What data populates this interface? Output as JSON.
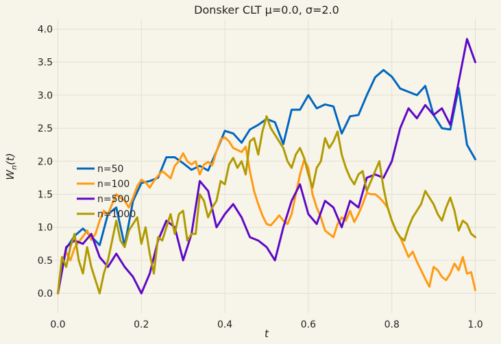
{
  "chart_data": {
    "type": "line",
    "title": "Donsker CLT μ=0.0, σ=2.0",
    "xlabel": "t",
    "ylabel": "W_n(t)",
    "xlim": [
      -0.05,
      1.05
    ],
    "ylim": [
      -0.3,
      4.15
    ],
    "xticks": [
      0.0,
      0.2,
      0.4,
      0.6,
      0.8,
      1.0
    ],
    "xtick_labels": [
      "0.0",
      "0.2",
      "0.4",
      "0.6",
      "0.8",
      "1.0"
    ],
    "yticks": [
      0.0,
      0.5,
      1.0,
      1.5,
      2.0,
      2.5,
      3.0,
      3.5,
      4.0
    ],
    "ytick_labels": [
      "0.0",
      "0.5",
      "1.0",
      "1.5",
      "2.0",
      "2.5",
      "3.0",
      "3.5",
      "4.0"
    ],
    "grid": true,
    "legend_position": "center-left",
    "series": [
      {
        "name": "n=50",
        "color": "#0066c0",
        "x": [
          0,
          0.02,
          0.04,
          0.06,
          0.08,
          0.1,
          0.12,
          0.14,
          0.16,
          0.18,
          0.2,
          0.22,
          0.24,
          0.26,
          0.28,
          0.3,
          0.32,
          0.34,
          0.36,
          0.38,
          0.4,
          0.42,
          0.44,
          0.46,
          0.48,
          0.5,
          0.52,
          0.54,
          0.56,
          0.58,
          0.6,
          0.62,
          0.64,
          0.66,
          0.68,
          0.7,
          0.72,
          0.74,
          0.76,
          0.78,
          0.8,
          0.82,
          0.84,
          0.86,
          0.88,
          0.9,
          0.92,
          0.94,
          0.96,
          0.98,
          1.0
        ],
        "y": [
          0.0,
          0.68,
          0.87,
          0.98,
          0.86,
          0.73,
          1.2,
          1.3,
          0.72,
          1.4,
          1.67,
          1.7,
          1.75,
          2.06,
          2.06,
          1.97,
          1.87,
          1.93,
          1.86,
          2.15,
          2.46,
          2.42,
          2.28,
          2.48,
          2.55,
          2.64,
          2.59,
          2.26,
          2.78,
          2.78,
          3.0,
          2.8,
          2.86,
          2.83,
          2.42,
          2.68,
          2.7,
          3.0,
          3.27,
          3.38,
          3.28,
          3.1,
          3.05,
          3.0,
          3.14,
          2.7,
          2.5,
          2.48,
          3.11,
          2.25,
          2.03
        ]
      },
      {
        "name": "n=100",
        "color": "#ff9a12",
        "x": [
          0,
          0.01,
          0.02,
          0.03,
          0.04,
          0.05,
          0.06,
          0.07,
          0.08,
          0.09,
          0.1,
          0.11,
          0.12,
          0.13,
          0.14,
          0.15,
          0.16,
          0.17,
          0.18,
          0.19,
          0.2,
          0.21,
          0.22,
          0.23,
          0.24,
          0.25,
          0.26,
          0.27,
          0.28,
          0.29,
          0.3,
          0.31,
          0.32,
          0.33,
          0.34,
          0.35,
          0.36,
          0.37,
          0.38,
          0.39,
          0.4,
          0.41,
          0.42,
          0.43,
          0.44,
          0.45,
          0.46,
          0.47,
          0.48,
          0.49,
          0.5,
          0.51,
          0.52,
          0.53,
          0.54,
          0.55,
          0.56,
          0.57,
          0.58,
          0.59,
          0.6,
          0.61,
          0.62,
          0.63,
          0.64,
          0.65,
          0.66,
          0.67,
          0.68,
          0.69,
          0.7,
          0.71,
          0.72,
          0.73,
          0.74,
          0.75,
          0.76,
          0.77,
          0.78,
          0.79,
          0.8,
          0.81,
          0.82,
          0.83,
          0.84,
          0.85,
          0.86,
          0.87,
          0.88,
          0.89,
          0.9,
          0.91,
          0.92,
          0.93,
          0.94,
          0.95,
          0.96,
          0.97,
          0.98,
          0.99,
          1.0
        ],
        "y": [
          0.0,
          0.47,
          0.62,
          0.5,
          0.69,
          0.78,
          0.86,
          0.95,
          0.81,
          0.9,
          1.1,
          1.25,
          1.2,
          1.35,
          1.5,
          1.45,
          1.4,
          1.3,
          1.45,
          1.62,
          1.72,
          1.68,
          1.6,
          1.7,
          1.78,
          1.85,
          1.8,
          1.74,
          1.93,
          2.0,
          2.12,
          2.0,
          1.95,
          2.0,
          1.8,
          1.95,
          1.99,
          1.94,
          2.15,
          2.33,
          2.36,
          2.3,
          2.2,
          2.17,
          2.14,
          2.22,
          1.85,
          1.55,
          1.35,
          1.18,
          1.05,
          1.03,
          1.1,
          1.18,
          1.1,
          1.05,
          1.2,
          1.5,
          1.8,
          2.02,
          1.9,
          1.5,
          1.3,
          1.15,
          0.95,
          0.9,
          0.85,
          1.05,
          1.15,
          1.1,
          1.25,
          1.08,
          1.2,
          1.35,
          1.52,
          1.5,
          1.5,
          1.45,
          1.38,
          1.3,
          1.1,
          0.95,
          0.85,
          0.7,
          0.55,
          0.63,
          0.48,
          0.35,
          0.22,
          0.1,
          0.4,
          0.35,
          0.25,
          0.2,
          0.3,
          0.45,
          0.35,
          0.55,
          0.3,
          0.32,
          0.05
        ]
      },
      {
        "name": "n=500",
        "color": "#5e08c6",
        "x": [
          0,
          0.02,
          0.04,
          0.06,
          0.08,
          0.1,
          0.12,
          0.14,
          0.16,
          0.18,
          0.2,
          0.22,
          0.24,
          0.26,
          0.28,
          0.3,
          0.32,
          0.34,
          0.36,
          0.38,
          0.4,
          0.42,
          0.44,
          0.46,
          0.48,
          0.5,
          0.52,
          0.54,
          0.56,
          0.58,
          0.6,
          0.62,
          0.64,
          0.66,
          0.68,
          0.7,
          0.72,
          0.74,
          0.76,
          0.78,
          0.8,
          0.82,
          0.84,
          0.86,
          0.88,
          0.9,
          0.92,
          0.94,
          0.96,
          0.98,
          1.0
        ],
        "y": [
          0.0,
          0.7,
          0.8,
          0.75,
          0.9,
          0.55,
          0.4,
          0.6,
          0.4,
          0.25,
          0.0,
          0.3,
          0.8,
          1.1,
          1.0,
          0.5,
          0.9,
          1.7,
          1.55,
          1.0,
          1.2,
          1.35,
          1.15,
          0.85,
          0.8,
          0.7,
          0.5,
          1.0,
          1.4,
          1.65,
          1.2,
          1.05,
          1.4,
          1.3,
          1.0,
          1.4,
          1.3,
          1.75,
          1.8,
          1.75,
          2.0,
          2.5,
          2.8,
          2.65,
          2.85,
          2.7,
          2.8,
          2.55,
          3.2,
          3.85,
          3.5
        ]
      },
      {
        "name": "n=1000",
        "color": "#b09a00",
        "x": [
          0,
          0.01,
          0.02,
          0.03,
          0.04,
          0.05,
          0.06,
          0.07,
          0.08,
          0.09,
          0.1,
          0.11,
          0.12,
          0.13,
          0.14,
          0.15,
          0.16,
          0.17,
          0.18,
          0.19,
          0.2,
          0.21,
          0.22,
          0.23,
          0.24,
          0.25,
          0.26,
          0.27,
          0.28,
          0.29,
          0.3,
          0.31,
          0.32,
          0.33,
          0.34,
          0.35,
          0.36,
          0.37,
          0.38,
          0.39,
          0.4,
          0.41,
          0.42,
          0.43,
          0.44,
          0.45,
          0.46,
          0.47,
          0.48,
          0.49,
          0.5,
          0.51,
          0.52,
          0.53,
          0.54,
          0.55,
          0.56,
          0.57,
          0.58,
          0.59,
          0.6,
          0.61,
          0.62,
          0.63,
          0.64,
          0.65,
          0.66,
          0.67,
          0.68,
          0.69,
          0.7,
          0.71,
          0.72,
          0.73,
          0.74,
          0.75,
          0.76,
          0.77,
          0.78,
          0.79,
          0.8,
          0.81,
          0.82,
          0.83,
          0.84,
          0.85,
          0.86,
          0.87,
          0.88,
          0.89,
          0.9,
          0.91,
          0.92,
          0.93,
          0.94,
          0.95,
          0.96,
          0.97,
          0.98,
          0.99,
          1.0
        ],
        "y": [
          0.0,
          0.55,
          0.4,
          0.7,
          0.9,
          0.5,
          0.3,
          0.7,
          0.4,
          0.2,
          0.0,
          0.3,
          0.5,
          0.8,
          1.1,
          0.8,
          0.7,
          0.95,
          1.05,
          1.15,
          0.75,
          1.0,
          0.6,
          0.3,
          0.85,
          0.8,
          1.0,
          1.2,
          0.9,
          1.2,
          1.25,
          0.8,
          0.9,
          0.9,
          1.5,
          1.4,
          1.15,
          1.3,
          1.4,
          1.7,
          1.65,
          1.95,
          2.05,
          1.9,
          2.0,
          1.8,
          2.3,
          2.35,
          2.1,
          2.45,
          2.68,
          2.5,
          2.4,
          2.3,
          2.2,
          2.0,
          1.9,
          2.1,
          2.2,
          2.05,
          1.8,
          1.6,
          1.9,
          2.0,
          2.35,
          2.2,
          2.3,
          2.45,
          2.1,
          1.9,
          1.75,
          1.65,
          1.8,
          1.85,
          1.55,
          1.7,
          1.85,
          2.0,
          1.6,
          1.3,
          1.1,
          0.95,
          0.85,
          0.8,
          1.0,
          1.15,
          1.25,
          1.35,
          1.55,
          1.45,
          1.35,
          1.2,
          1.1,
          1.3,
          1.45,
          1.25,
          0.95,
          1.1,
          1.05,
          0.9,
          0.85
        ]
      }
    ]
  }
}
